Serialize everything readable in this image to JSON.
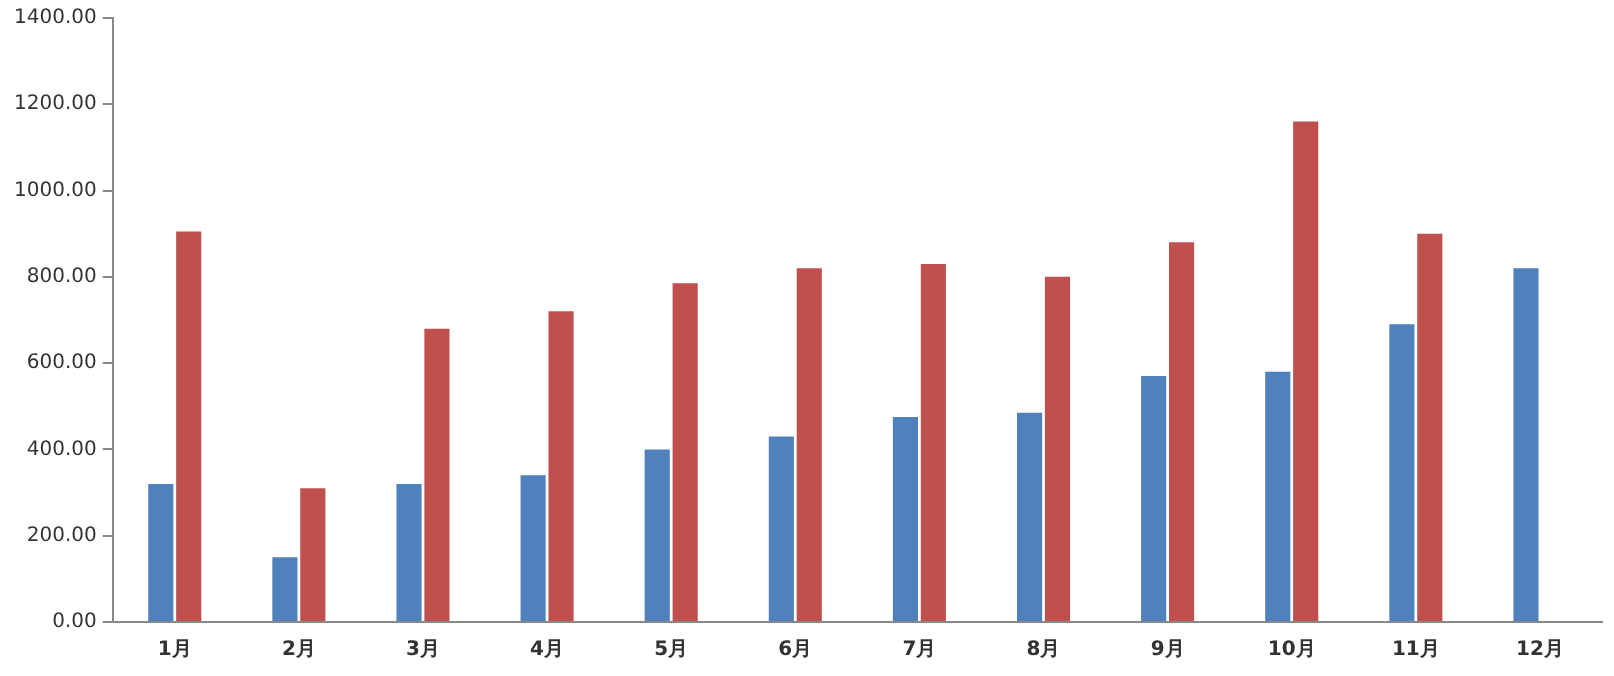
{
  "chart_data": {
    "type": "bar",
    "categories": [
      "1月",
      "2月",
      "3月",
      "4月",
      "5月",
      "6月",
      "7月",
      "8月",
      "9月",
      "10月",
      "11月",
      "12月"
    ],
    "series": [
      {
        "color": "#4f81bd",
        "values": [
          320,
          150,
          320,
          340,
          400,
          430,
          475,
          485,
          570,
          580,
          690,
          820
        ]
      },
      {
        "color": "#c0504d",
        "values": [
          905,
          310,
          680,
          720,
          785,
          820,
          830,
          800,
          880,
          1160,
          900,
          null
        ]
      }
    ],
    "ylim": [
      0,
      1400
    ],
    "yticks": [
      {
        "value": 0,
        "label": "0.00"
      },
      {
        "value": 200,
        "label": "200.00"
      },
      {
        "value": 400,
        "label": "400.00"
      },
      {
        "value": 600,
        "label": "600.00"
      },
      {
        "value": 800,
        "label": "800.00"
      },
      {
        "value": 1000,
        "label": "1000.00"
      },
      {
        "value": 1200,
        "label": "1200.00"
      },
      {
        "value": 1400,
        "label": "1400.00"
      }
    ],
    "grid": false,
    "legend": false
  }
}
